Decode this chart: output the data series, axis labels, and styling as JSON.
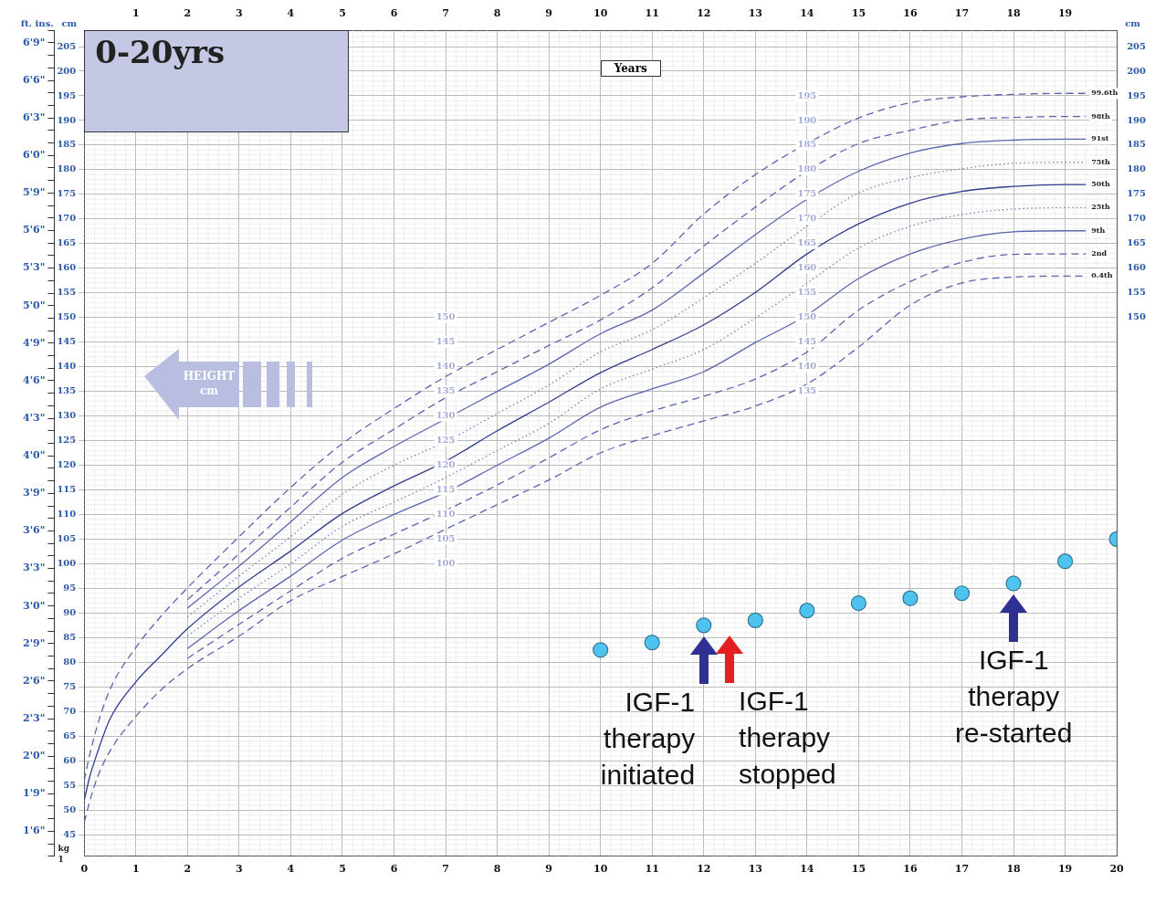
{
  "chart_data": {
    "type": "line",
    "title": "0-20yrs",
    "xlabel": "Years",
    "ylabel": "cm",
    "y2label": "ft. ins.",
    "y3label": "cm",
    "xlim": [
      0,
      20
    ],
    "xticks": [
      0,
      1,
      2,
      3,
      4,
      5,
      6,
      7,
      8,
      9,
      10,
      11,
      12,
      13,
      14,
      15,
      16,
      17,
      18,
      19,
      20
    ],
    "x2lim": [
      0,
      20
    ],
    "x2ticks": [
      1,
      2,
      3,
      4,
      5,
      6,
      7,
      8,
      9,
      10,
      11,
      12,
      13,
      14,
      15,
      16,
      17,
      18,
      19
    ],
    "ylim": [
      40.6,
      208.3
    ],
    "yticks": [
      45,
      50,
      55,
      60,
      65,
      70,
      75,
      80,
      85,
      90,
      95,
      100,
      105,
      110,
      115,
      120,
      125,
      130,
      135,
      140,
      145,
      150,
      155,
      160,
      165,
      170,
      175,
      180,
      185,
      190,
      195,
      200,
      205
    ],
    "y2_categories": [
      null,
      "6'9\"",
      null,
      null,
      "6'6\"",
      null,
      null,
      "6'3\"",
      null,
      null,
      "6'0\"",
      null,
      null,
      "5'9\"",
      null,
      null,
      "5'6\"",
      null,
      null,
      "5'3\"",
      null,
      null,
      "5'0\"",
      null,
      null,
      "4'9\"",
      null,
      null,
      "4'6\"",
      null,
      null,
      "4'3\"",
      null,
      null,
      "4'0\"",
      null,
      null,
      "3'9\"",
      null,
      null,
      "3'6\"",
      null,
      null,
      "3'3\"",
      null,
      null,
      "3'0\"",
      null,
      null,
      "2'9\"",
      null,
      null,
      "2'6\"",
      null,
      null,
      "2'3\"",
      null,
      null,
      "2'0\"",
      null,
      null,
      "1'9\"",
      null,
      null,
      "1'6\"",
      null,
      null
    ],
    "y3lim": [
      40.6,
      208.3
    ],
    "y3ticks": [
      150,
      155,
      160,
      165,
      170,
      175,
      180,
      185,
      190,
      195,
      200,
      205
    ],
    "grid": true,
    "legend": false,
    "series": [
      {
        "name": "99.6th",
        "color": "#5b66ad",
        "line_style": "dashed",
        "marker": "none",
        "x": [
          0,
          0.1,
          0.25,
          0.5,
          1,
          1.5,
          2,
          3,
          4,
          5,
          6,
          7,
          8,
          9,
          10,
          11,
          12,
          13,
          14,
          15,
          16,
          17,
          18,
          19,
          19.4
        ],
        "values": [
          56,
          61,
          67,
          74.5,
          83,
          89.5,
          95.1,
          105.5,
          115.5,
          124.4,
          131.5,
          138,
          143.5,
          149,
          154.5,
          161,
          171,
          179,
          185.3,
          190.5,
          193.6,
          194.8,
          195.3,
          195.5,
          195.5
        ]
      },
      {
        "name": "98th",
        "color": "#5b66ad",
        "line_style": "dashed",
        "marker": "none",
        "x": [
          2,
          3,
          4,
          5,
          6,
          7,
          8,
          9,
          10,
          11,
          12,
          13,
          14,
          15,
          16,
          17,
          18,
          19,
          19.4
        ],
        "values": [
          92.7,
          102,
          111.5,
          120.6,
          127.3,
          133.7,
          139,
          144.3,
          149.5,
          156,
          164.5,
          172.4,
          179.7,
          185.3,
          188,
          190.1,
          190.6,
          190.8,
          190.8
        ]
      },
      {
        "name": "91st",
        "color": "#5b66ad",
        "line_style": "solid",
        "marker": "none",
        "x": [
          2,
          3,
          4,
          5,
          6,
          7,
          8,
          9,
          10,
          11,
          12,
          13,
          14,
          15,
          16,
          17,
          18,
          19,
          19.4
        ],
        "values": [
          91,
          99.5,
          108.5,
          117.5,
          123.8,
          129.4,
          135,
          140.5,
          146.7,
          151.5,
          159,
          166.8,
          174,
          179.7,
          183.4,
          185.3,
          186,
          186.2,
          186.2
        ]
      },
      {
        "name": "75th",
        "color": "#7a82bb",
        "line_style": "dotted",
        "marker": "none",
        "x": [
          2,
          3,
          4,
          5,
          6,
          7,
          8,
          9,
          10,
          11,
          12,
          13,
          14,
          15,
          16,
          17,
          18,
          19,
          19.4
        ],
        "values": [
          89.2,
          97.5,
          105.5,
          114.1,
          120,
          124.8,
          130.5,
          136.3,
          143,
          147.5,
          154,
          161,
          168.5,
          175.3,
          178.4,
          180.2,
          181.3,
          181.5,
          181.5
        ]
      },
      {
        "name": "50th",
        "color": "#2e3d8c",
        "line_style": "solid",
        "marker": "none",
        "x": [
          0,
          0.1,
          0.25,
          0.5,
          1,
          1.5,
          2,
          3,
          4,
          5,
          6,
          7,
          8,
          9,
          10,
          11,
          12,
          13,
          14,
          15,
          16,
          17,
          18,
          19,
          19.4
        ],
        "values": [
          52,
          56.5,
          61.5,
          68.5,
          76,
          81.5,
          86.8,
          95.3,
          102.6,
          110.2,
          115.8,
          120.8,
          127,
          132.8,
          138.8,
          143.5,
          148.5,
          155.1,
          162.9,
          169,
          173.2,
          175.6,
          176.6,
          177,
          177
        ]
      },
      {
        "name": "25th",
        "color": "#7a82bb",
        "line_style": "dotted",
        "marker": "none",
        "x": [
          2,
          3,
          4,
          5,
          6,
          7,
          8,
          9,
          10,
          11,
          12,
          13,
          14,
          15,
          16,
          17,
          18,
          19,
          19.4
        ],
        "values": [
          85.3,
          93,
          100,
          107.6,
          112.5,
          117.5,
          123,
          128.5,
          135.5,
          139.5,
          143.5,
          149.9,
          157,
          164.1,
          168.5,
          170.9,
          172,
          172.3,
          172.3
        ]
      },
      {
        "name": "9th",
        "color": "#5b66ad",
        "line_style": "solid",
        "marker": "none",
        "x": [
          2,
          3,
          4,
          5,
          6,
          7,
          8,
          9,
          10,
          11,
          12,
          13,
          14,
          15,
          16,
          17,
          18,
          19,
          19.4
        ],
        "values": [
          82.8,
          90.5,
          97.5,
          104.8,
          110,
          114.5,
          120,
          125.5,
          131.8,
          135.5,
          139,
          144.9,
          150.5,
          157.9,
          162.9,
          165.9,
          167.4,
          167.6,
          167.6
        ]
      },
      {
        "name": "2nd",
        "color": "#5b66ad",
        "line_style": "dashed",
        "marker": "none",
        "x": [
          2,
          3,
          4,
          5,
          6,
          7,
          8,
          9,
          10,
          11,
          12,
          13,
          14,
          15,
          16,
          17,
          18,
          19,
          19.4
        ],
        "values": [
          80.8,
          87.7,
          94.5,
          101.1,
          106,
          110.8,
          116,
          121.5,
          127.2,
          131,
          134,
          137.5,
          143,
          151.5,
          157.3,
          161.2,
          162.8,
          162.9,
          162.9
        ]
      },
      {
        "name": "0.4th",
        "color": "#5b66ad",
        "line_style": "dashed",
        "marker": "none",
        "x": [
          0,
          0.1,
          0.25,
          0.5,
          1,
          1.5,
          2,
          3,
          4,
          5,
          6,
          7,
          8,
          9,
          10,
          11,
          12,
          13,
          14,
          15,
          16,
          17,
          18,
          19,
          19.4
        ],
        "values": [
          47.5,
          51.5,
          56.5,
          62,
          69,
          74.5,
          78.7,
          85.3,
          92.5,
          97.4,
          102,
          107,
          112,
          117,
          122.5,
          126,
          129,
          132,
          136.5,
          144,
          152.5,
          157,
          158.2,
          158.4,
          158.4
        ]
      },
      {
        "type": "scatter",
        "color": "#4fc3f0",
        "marker": "circle",
        "x": [
          10,
          11,
          12,
          13,
          14,
          15,
          16,
          17,
          18,
          19,
          20
        ],
        "values": [
          82.5,
          84,
          87.5,
          88.5,
          90.5,
          92,
          93,
          94,
          96,
          100.5,
          105
        ]
      }
    ],
    "annotations": [
      "HEIGHT cm",
      "kg",
      "1",
      "IGF-1\ntherapy\ninitiated",
      "IGF-1\ntherapy\nstopped",
      "IGF-1\ntherapy\nre-started",
      "100",
      "105",
      "110",
      "115",
      "120",
      "125",
      "130",
      "135",
      "140",
      "145",
      "150",
      "135",
      "140",
      "145",
      "150",
      "155",
      "160",
      "165",
      "170",
      "175",
      "180",
      "185",
      "190",
      "195"
    ]
  }
}
